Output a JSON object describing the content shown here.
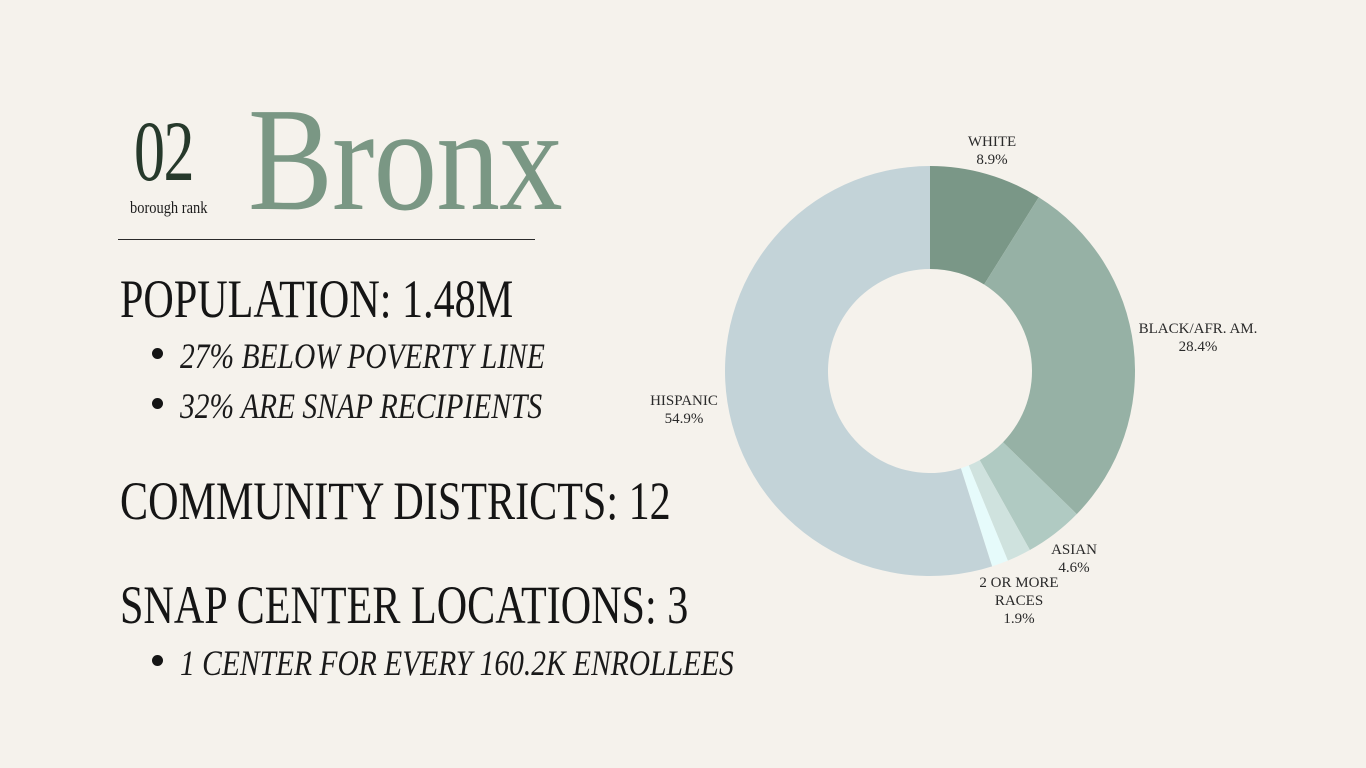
{
  "header": {
    "rank": "02",
    "rank_caption": "borough rank",
    "borough": "Bronx"
  },
  "stats": {
    "population": "POPULATION: 1.48M",
    "population_bullets": [
      "27%  BELOW POVERTY LINE",
      "32% ARE SNAP RECIPIENTS"
    ],
    "districts": "COMMUNITY DISTRICTS: 12",
    "snap_centers": "SNAP CENTER LOCATIONS: 3",
    "snap_bullets": [
      "1 CENTER FOR EVERY 160.2K ENROLLEES"
    ]
  },
  "chart_data": {
    "type": "pie",
    "style": "donut",
    "title": "",
    "slices": [
      {
        "label": [
          "WHITE"
        ],
        "value": 8.9,
        "value_label": "8.9%",
        "color": "#7a9787"
      },
      {
        "label": [
          "BLACK/AFR. AM."
        ],
        "value": 28.4,
        "value_label": "28.4%",
        "color": "#96b1a5"
      },
      {
        "label": [
          "ASIAN"
        ],
        "value": 4.6,
        "value_label": "4.6%",
        "color": "#b0cac2"
      },
      {
        "label": [
          "2 OR MORE",
          "RACES"
        ],
        "value": 1.9,
        "value_label": "1.9%",
        "color": "#cfe2de"
      },
      {
        "label": [],
        "value": 1.3,
        "value_label": "",
        "color": "#e6fbfb"
      },
      {
        "label": [
          "HISPANIC"
        ],
        "value": 54.9,
        "value_label": "54.9%",
        "color": "#c3d3d8"
      }
    ]
  }
}
